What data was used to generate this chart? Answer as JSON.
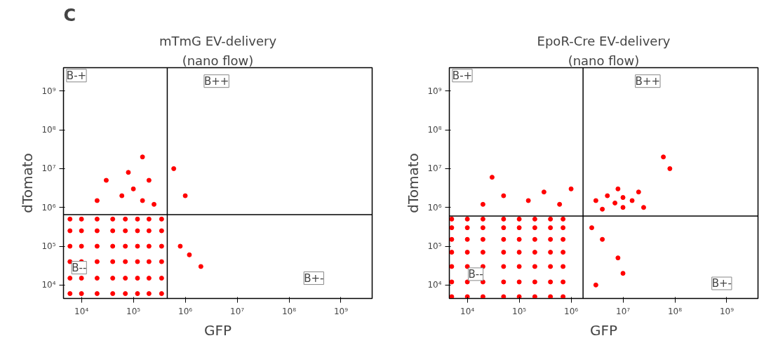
{
  "chart_data": [
    {
      "type": "scatter",
      "title": "mTmG EV-delivery",
      "subtitle": "(nano flow)",
      "xlabel": "GFP",
      "ylabel": "dTomato",
      "log": "xy",
      "grid": false,
      "marker": "circle",
      "xlim": [
        4500,
        4000000000
      ],
      "ylim": [
        4500,
        4000000000
      ],
      "xticks": [
        {
          "value": 10000,
          "label": "10⁴"
        },
        {
          "value": 100000,
          "label": "10⁵"
        },
        {
          "value": 1000000,
          "label": "10⁶"
        },
        {
          "value": 10000000,
          "label": "10⁷"
        },
        {
          "value": 100000000,
          "label": "10⁸"
        },
        {
          "value": 1000000000,
          "label": "10⁹"
        }
      ],
      "yticks": [
        {
          "value": 10000,
          "label": "10⁴"
        },
        {
          "value": 100000,
          "label": "10⁵"
        },
        {
          "value": 1000000,
          "label": "10⁶"
        },
        {
          "value": 10000000,
          "label": "10⁷"
        },
        {
          "value": 100000000,
          "label": "10⁸"
        },
        {
          "value": 1000000000,
          "label": "10⁹"
        }
      ],
      "ref_lines": [
        {
          "axis": "x",
          "value": 450000,
          "color": "#000000"
        },
        {
          "axis": "y",
          "value": 650000,
          "color": "#000000"
        }
      ],
      "annotations": [
        "C",
        {
          "text": "B-+",
          "x": 8000,
          "y": 2500000000
        },
        {
          "text": "B++",
          "x": 4000000,
          "y": 1800000000
        },
        {
          "text": "B--",
          "x": 9000,
          "y": 28000
        },
        {
          "text": "B+-",
          "x": 300000000,
          "y": 15000
        }
      ],
      "series": [
        {
          "color": "#ff0000",
          "x": [
            6000,
            10000,
            20000,
            40000,
            70000,
            120000,
            200000,
            350000,
            6000,
            10000,
            20000,
            40000,
            70000,
            120000,
            200000,
            350000,
            6000,
            10000,
            20000,
            40000,
            70000,
            120000,
            200000,
            350000,
            6000,
            10000,
            20000,
            40000,
            70000,
            120000,
            200000,
            350000,
            6000,
            10000,
            20000,
            40000,
            70000,
            120000,
            200000,
            350000,
            6000,
            10000,
            20000,
            40000,
            70000,
            120000,
            200000,
            350000,
            20000,
            60000,
            100000,
            150000,
            250000,
            80000,
            150000,
            30000,
            200000,
            800000,
            1200000,
            2000000,
            600000,
            1000000
          ],
          "values": [
            6000,
            6000,
            6000,
            6000,
            6000,
            6000,
            6000,
            6000,
            15000,
            15000,
            15000,
            15000,
            15000,
            15000,
            15000,
            15000,
            40000,
            40000,
            40000,
            40000,
            40000,
            40000,
            40000,
            40000,
            100000,
            100000,
            100000,
            100000,
            100000,
            100000,
            100000,
            100000,
            250000,
            250000,
            250000,
            250000,
            250000,
            250000,
            250000,
            250000,
            500000,
            500000,
            500000,
            500000,
            500000,
            500000,
            500000,
            500000,
            1500000,
            2000000,
            3000000,
            1500000,
            1200000,
            8000000,
            20000000,
            5000000,
            5000000,
            100000,
            60000,
            30000,
            10000000,
            2000000
          ]
        }
      ]
    },
    {
      "type": "scatter",
      "title": "EpoR-Cre EV-delivery",
      "subtitle": "(nano flow)",
      "xlabel": "GFP",
      "ylabel": "dTomato",
      "log": "xy",
      "grid": false,
      "marker": "circle",
      "xlim": [
        4500,
        4000000000
      ],
      "ylim": [
        4500,
        4000000000
      ],
      "xticks": [
        {
          "value": 10000,
          "label": "10⁴"
        },
        {
          "value": 100000,
          "label": "10⁵"
        },
        {
          "value": 1000000,
          "label": "10⁶"
        },
        {
          "value": 10000000,
          "label": "10⁷"
        },
        {
          "value": 100000000,
          "label": "10⁸"
        },
        {
          "value": 1000000000,
          "label": "10⁹"
        }
      ],
      "yticks": [
        {
          "value": 10000,
          "label": "10⁴"
        },
        {
          "value": 100000,
          "label": "10⁵"
        },
        {
          "value": 1000000,
          "label": "10⁶"
        },
        {
          "value": 10000000,
          "label": "10⁷"
        },
        {
          "value": 100000000,
          "label": "10⁸"
        },
        {
          "value": 1000000000,
          "label": "10⁹"
        }
      ],
      "ref_lines": [
        {
          "axis": "x",
          "value": 1700000,
          "color": "#000000"
        },
        {
          "axis": "y",
          "value": 600000,
          "color": "#000000"
        }
      ],
      "annotations": [
        {
          "text": "B-+",
          "x": 8000,
          "y": 2500000000
        },
        {
          "text": "B++",
          "x": 30000000,
          "y": 1800000000
        },
        {
          "text": "B--",
          "x": 14500,
          "y": 19000
        },
        {
          "text": "B+-",
          "x": 800000000,
          "y": 11000
        }
      ],
      "series": [
        {
          "color": "#ff0000",
          "x": [
            5000,
            10000,
            20000,
            50000,
            100000,
            200000,
            400000,
            700000,
            5000,
            10000,
            20000,
            50000,
            100000,
            200000,
            400000,
            700000,
            5000,
            10000,
            20000,
            50000,
            100000,
            200000,
            400000,
            700000,
            5000,
            10000,
            20000,
            50000,
            100000,
            200000,
            400000,
            700000,
            5000,
            10000,
            20000,
            50000,
            100000,
            200000,
            400000,
            700000,
            5000,
            10000,
            20000,
            50000,
            100000,
            200000,
            400000,
            700000,
            5000,
            10000,
            20000,
            50000,
            100000,
            200000,
            400000,
            700000,
            20000,
            50000,
            150000,
            300000,
            600000,
            1000000,
            30000,
            3000000,
            5000000,
            7000000,
            10000000,
            15000000,
            20000000,
            4000000,
            10000000,
            25000000,
            8000000,
            60000000,
            80000000,
            2500000,
            4000000,
            8000000,
            3000000,
            10000000
          ],
          "values": [
            5000,
            5000,
            5000,
            5000,
            5000,
            5000,
            5000,
            5000,
            12000,
            12000,
            12000,
            12000,
            12000,
            12000,
            12000,
            12000,
            30000,
            30000,
            30000,
            30000,
            30000,
            30000,
            30000,
            30000,
            70000,
            70000,
            70000,
            70000,
            70000,
            70000,
            70000,
            70000,
            150000,
            150000,
            150000,
            150000,
            150000,
            150000,
            150000,
            150000,
            300000,
            300000,
            300000,
            300000,
            300000,
            300000,
            300000,
            300000,
            500000,
            500000,
            500000,
            500000,
            500000,
            500000,
            500000,
            500000,
            1200000,
            2000000,
            1500000,
            2500000,
            1200000,
            3000000,
            6000000,
            1500000,
            2000000,
            1300000,
            1800000,
            1500000,
            2500000,
            900000,
            1000000,
            1000000,
            3000000,
            20000000,
            10000000,
            300000,
            150000,
            50000,
            10000,
            20000
          ]
        }
      ]
    }
  ]
}
